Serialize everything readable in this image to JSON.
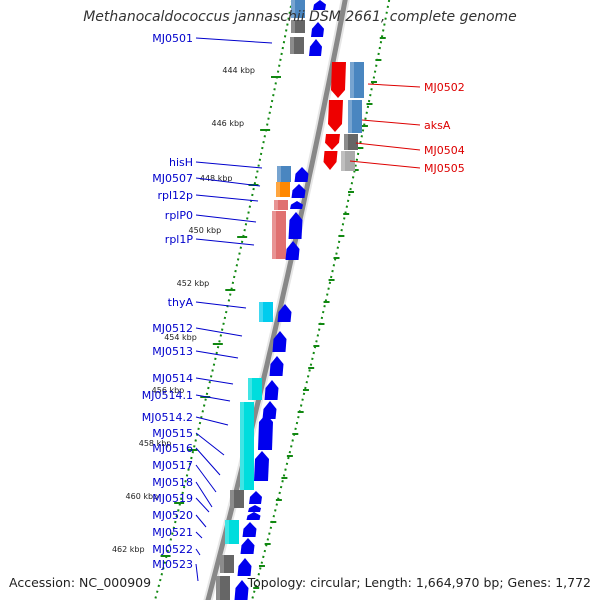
{
  "title": "Methanocaldococcus jannaschii DSM 2661, complete genome",
  "accession": "Accession: NC_000909",
  "topology": "Topology: circular; Length: 1,664,970 bp; Genes: 1,772",
  "colors": {
    "label_blue": "#0000cc",
    "label_red": "#dd0000",
    "tick_green": "#118811",
    "backbone": "#888888",
    "arrow_blue": "#0000ee",
    "arrow_red": "#ee0000",
    "cog_blue": "#4a86c0",
    "cog_gray": "#666666",
    "cog_cyan": "#00dddd",
    "cog_orange": "#ff8800",
    "cog_pink": "#e07070",
    "cog_lightgray": "#aaaaaa"
  },
  "kbp_ticks": [
    "444 kbp",
    "446 kbp",
    "448 kbp",
    "450 kbp",
    "452 kbp",
    "454 kbp",
    "456 kbp",
    "458 kbp",
    "460 kbp",
    "462 kbp"
  ],
  "right_labels": [
    "MJ0502",
    "aksA",
    "MJ0504",
    "MJ0505"
  ],
  "left_labels": [
    "MJ0501",
    "hisH",
    "MJ0507",
    "rpl12p",
    "rplP0",
    "rpl1P",
    "thyA",
    "MJ0512",
    "MJ0513",
    "MJ0514",
    "MJ0514.1",
    "MJ0514.2",
    "MJ0515",
    "MJ0516",
    "MJ0517",
    "MJ0518",
    "MJ0519",
    "MJ0520",
    "MJ0521",
    "MJ0522",
    "MJ0523"
  ]
}
